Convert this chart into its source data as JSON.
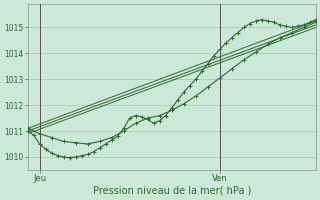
{
  "bg_color": "#cce8d8",
  "grid_color": "#a8c8b8",
  "line_color": "#2d6a2d",
  "marker_color": "#2d6a2d",
  "title": "Pression niveau de la mer( hPa )",
  "xlabel_jeu": "Jeu",
  "xlabel_ven": "Ven",
  "ylim": [
    1009.5,
    1015.9
  ],
  "yticks": [
    1010,
    1011,
    1012,
    1013,
    1014,
    1015
  ],
  "xlim": [
    0,
    48
  ],
  "x_jeu": 2,
  "x_ven": 32,
  "trend_lines": [
    {
      "x": [
        0,
        48
      ],
      "y": [
        1010.9,
        1015.0
      ]
    },
    {
      "x": [
        0,
        48
      ],
      "y": [
        1011.0,
        1015.1
      ]
    },
    {
      "x": [
        0,
        48
      ],
      "y": [
        1011.1,
        1015.25
      ]
    }
  ],
  "main_line_x": [
    0,
    1,
    2,
    3,
    4,
    5,
    6,
    7,
    8,
    9,
    10,
    11,
    12,
    13,
    14,
    15,
    16,
    17,
    18,
    19,
    20,
    21,
    22,
    23,
    24,
    25,
    26,
    27,
    28,
    29,
    30,
    31,
    32,
    33,
    34,
    35,
    36,
    37,
    38,
    39,
    40,
    41,
    42,
    43,
    44,
    45,
    46,
    47,
    48
  ],
  "main_line_y": [
    1011.0,
    1010.85,
    1010.5,
    1010.3,
    1010.15,
    1010.05,
    1010.0,
    1009.97,
    1010.0,
    1010.05,
    1010.1,
    1010.2,
    1010.35,
    1010.5,
    1010.65,
    1010.8,
    1011.1,
    1011.5,
    1011.6,
    1011.55,
    1011.45,
    1011.3,
    1011.4,
    1011.6,
    1011.9,
    1012.2,
    1012.5,
    1012.75,
    1013.0,
    1013.3,
    1013.6,
    1013.9,
    1014.15,
    1014.4,
    1014.6,
    1014.8,
    1015.0,
    1015.15,
    1015.25,
    1015.3,
    1015.25,
    1015.2,
    1015.1,
    1015.05,
    1015.0,
    1015.05,
    1015.1,
    1015.2,
    1015.3
  ],
  "upper_line_x": [
    0,
    2,
    4,
    6,
    8,
    10,
    12,
    14,
    16,
    18,
    20,
    22,
    24,
    26,
    28,
    30,
    32,
    34,
    36,
    38,
    40,
    42,
    44,
    46,
    48
  ],
  "upper_line_y": [
    1011.1,
    1010.9,
    1010.75,
    1010.6,
    1010.55,
    1010.5,
    1010.6,
    1010.75,
    1011.0,
    1011.3,
    1011.5,
    1011.6,
    1011.8,
    1012.05,
    1012.35,
    1012.7,
    1013.05,
    1013.4,
    1013.75,
    1014.05,
    1014.35,
    1014.6,
    1014.8,
    1015.0,
    1015.2
  ]
}
